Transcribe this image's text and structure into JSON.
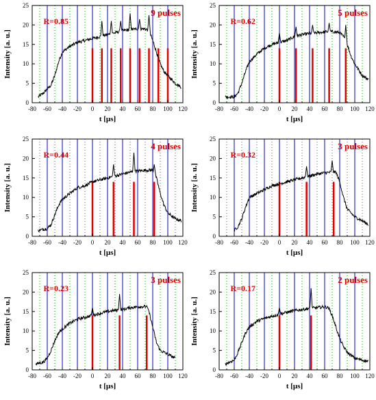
{
  "colors": {
    "trace": "#000000",
    "blue_line": "#0000c0",
    "red_pulse": "#e00000",
    "green_grid": "#00a000",
    "label": "#e00000"
  },
  "chart_data": [
    {
      "type": "line",
      "xlabel": "t [µs]",
      "ylabel": "Intensity [a. u.]",
      "xlim": [
        -80,
        120
      ],
      "ylim": [
        0,
        25
      ],
      "x_ticks": [
        "-80",
        "-60",
        "-40",
        "-20",
        "0",
        "20",
        "40",
        "60",
        "80",
        "100",
        "120"
      ],
      "y_ticks": [
        "0",
        "5",
        "10",
        "15",
        "20",
        "25"
      ],
      "r_label": "R=0.85",
      "pulse_label": "9 pulses",
      "blue_lines": [
        -60,
        -40,
        -20,
        0,
        20,
        40,
        60,
        80,
        100
      ],
      "red_pulses": [
        0,
        12.5,
        25,
        37.5,
        50,
        62.5,
        75,
        87.5,
        100
      ],
      "red_height": 14,
      "trace": [
        [
          -72,
          1.5
        ],
        [
          -65,
          2.5
        ],
        [
          -55,
          4.5
        ],
        [
          -50,
          7
        ],
        [
          -45,
          10.5
        ],
        [
          -40,
          13
        ],
        [
          -30,
          14.5
        ],
        [
          -20,
          15.5
        ],
        [
          -10,
          16
        ],
        [
          0,
          16.5
        ],
        [
          10,
          17
        ],
        [
          20,
          17.5
        ],
        [
          30,
          18
        ],
        [
          40,
          18.5
        ],
        [
          50,
          18.8
        ],
        [
          60,
          19
        ],
        [
          70,
          19
        ],
        [
          75,
          18.5
        ],
        [
          80,
          16
        ],
        [
          85,
          13
        ],
        [
          90,
          10
        ],
        [
          95,
          8
        ],
        [
          100,
          7
        ],
        [
          110,
          5
        ],
        [
          118,
          4
        ]
      ],
      "spikes": [
        [
          12.5,
          21
        ],
        [
          25,
          21
        ],
        [
          37.5,
          21
        ],
        [
          50,
          23
        ],
        [
          62.5,
          21.5
        ],
        [
          75,
          22.5
        ]
      ]
    },
    {
      "type": "line",
      "xlabel": "t [µs]",
      "ylabel": "Intensity [a. u.]",
      "xlim": [
        -80,
        120
      ],
      "ylim": [
        0,
        25
      ],
      "x_ticks": [
        "-80",
        "-60",
        "-40",
        "-20",
        "0",
        "20",
        "40",
        "60",
        "80",
        "100",
        "120"
      ],
      "y_ticks": [
        "0",
        "5",
        "10",
        "15",
        "20",
        "25"
      ],
      "r_label": "R=0.62",
      "pulse_label": "5 pulses",
      "blue_lines": [
        -60,
        -40,
        -20,
        0,
        20,
        40,
        60,
        80,
        100
      ],
      "red_pulses": [
        0,
        22,
        44,
        66,
        88
      ],
      "red_height": 14,
      "trace": [
        [
          -72,
          1.5
        ],
        [
          -60,
          1.5
        ],
        [
          -55,
          2.5
        ],
        [
          -50,
          5
        ],
        [
          -45,
          8
        ],
        [
          -40,
          10.5
        ],
        [
          -30,
          12.5
        ],
        [
          -20,
          14
        ],
        [
          -10,
          15
        ],
        [
          0,
          15.5
        ],
        [
          10,
          16
        ],
        [
          20,
          17
        ],
        [
          30,
          17.5
        ],
        [
          40,
          17.8
        ],
        [
          50,
          18
        ],
        [
          60,
          18.2
        ],
        [
          70,
          18.3
        ],
        [
          80,
          18
        ],
        [
          85,
          17
        ],
        [
          90,
          15
        ],
        [
          95,
          12
        ],
        [
          100,
          10
        ],
        [
          105,
          8.5
        ],
        [
          110,
          7
        ],
        [
          118,
          6
        ]
      ],
      "spikes": [
        [
          0,
          18
        ],
        [
          22,
          19.5
        ],
        [
          44,
          20
        ],
        [
          66,
          20.5
        ],
        [
          88,
          20
        ]
      ]
    },
    {
      "type": "line",
      "xlabel": "t [µs]",
      "ylabel": "Intensity [a. u.]",
      "xlim": [
        -80,
        120
      ],
      "ylim": [
        0,
        25
      ],
      "x_ticks": [
        "-80",
        "-60",
        "-40",
        "-20",
        "0",
        "20",
        "40",
        "60",
        "80",
        "100",
        "120"
      ],
      "y_ticks": [
        "0",
        "5",
        "10",
        "15",
        "20",
        "25"
      ],
      "r_label": "R=0.44",
      "pulse_label": "4 pulses",
      "blue_lines": [
        -60,
        -40,
        -20,
        0,
        20,
        40,
        60,
        80,
        100
      ],
      "red_pulses": [
        0,
        28,
        55,
        82
      ],
      "red_height": 14,
      "trace": [
        [
          -72,
          1.5
        ],
        [
          -60,
          2
        ],
        [
          -55,
          3
        ],
        [
          -50,
          5.5
        ],
        [
          -45,
          8
        ],
        [
          -40,
          9.5
        ],
        [
          -30,
          11
        ],
        [
          -20,
          12.5
        ],
        [
          -10,
          13
        ],
        [
          0,
          14
        ],
        [
          10,
          14.5
        ],
        [
          20,
          15
        ],
        [
          30,
          15.5
        ],
        [
          40,
          16
        ],
        [
          50,
          16.5
        ],
        [
          60,
          16.8
        ],
        [
          70,
          17
        ],
        [
          80,
          17
        ],
        [
          85,
          15
        ],
        [
          90,
          11
        ],
        [
          95,
          8
        ],
        [
          100,
          6
        ],
        [
          110,
          4.5
        ],
        [
          118,
          4
        ]
      ],
      "spikes": [
        [
          28,
          18.5
        ],
        [
          55,
          21.5
        ],
        [
          82,
          18.5
        ]
      ]
    },
    {
      "type": "line",
      "xlabel": "t [µs]",
      "ylabel": "Intensity [a. u.]",
      "xlim": [
        -80,
        120
      ],
      "ylim": [
        0,
        25
      ],
      "x_ticks": [
        "-80",
        "-60",
        "-40",
        "-20",
        "0",
        "20",
        "40",
        "60",
        "80",
        "100",
        "120"
      ],
      "y_ticks": [
        "0",
        "5",
        "10",
        "15",
        "20",
        "25"
      ],
      "r_label": "R=0.32",
      "pulse_label": "3 pulses",
      "blue_lines": [
        -60,
        -40,
        -20,
        0,
        20,
        40,
        60,
        80,
        100
      ],
      "red_pulses": [
        0,
        36,
        72
      ],
      "red_height": 14,
      "trace": [
        [
          -60,
          1.5
        ],
        [
          -55,
          2.5
        ],
        [
          -50,
          4.5
        ],
        [
          -45,
          7.5
        ],
        [
          -40,
          10
        ],
        [
          -30,
          11
        ],
        [
          -20,
          12
        ],
        [
          -10,
          13
        ],
        [
          0,
          13.5
        ],
        [
          10,
          14
        ],
        [
          20,
          14.5
        ],
        [
          30,
          15
        ],
        [
          40,
          15.5
        ],
        [
          50,
          16
        ],
        [
          60,
          16.3
        ],
        [
          70,
          16.5
        ],
        [
          75,
          16.5
        ],
        [
          80,
          14
        ],
        [
          85,
          10
        ],
        [
          90,
          7
        ],
        [
          100,
          5
        ],
        [
          110,
          4
        ],
        [
          118,
          3
        ]
      ],
      "spikes": [
        [
          36,
          18
        ],
        [
          70,
          19.5
        ]
      ]
    },
    {
      "type": "line",
      "xlabel": "t [µs]",
      "ylabel": "Intensity [a. u.]",
      "xlim": [
        -80,
        120
      ],
      "ylim": [
        0,
        25
      ],
      "x_ticks": [
        "-80",
        "-60",
        "-40",
        "-20",
        "0",
        "20",
        "40",
        "60",
        "80",
        "100",
        "120"
      ],
      "y_ticks": [
        "0",
        "5",
        "10",
        "15",
        "20",
        "25"
      ],
      "r_label": "R=0.23",
      "pulse_label": "3 pulses",
      "blue_lines": [
        -60,
        -40,
        -20,
        0,
        20,
        40,
        60,
        80,
        100
      ],
      "red_pulses": [
        0,
        36,
        72
      ],
      "red_height": 14,
      "trace": [
        [
          -75,
          1.5
        ],
        [
          -65,
          2
        ],
        [
          -60,
          3
        ],
        [
          -55,
          5
        ],
        [
          -50,
          7.5
        ],
        [
          -45,
          9.5
        ],
        [
          -40,
          10.5
        ],
        [
          -30,
          12
        ],
        [
          -20,
          13
        ],
        [
          -10,
          13.5
        ],
        [
          0,
          14
        ],
        [
          10,
          14.5
        ],
        [
          20,
          15
        ],
        [
          30,
          15.3
        ],
        [
          40,
          15.5
        ],
        [
          50,
          16
        ],
        [
          60,
          16.2
        ],
        [
          70,
          16.3
        ],
        [
          75,
          15
        ],
        [
          80,
          11
        ],
        [
          85,
          7
        ],
        [
          90,
          5
        ],
        [
          100,
          4
        ],
        [
          110,
          3
        ]
      ],
      "spikes": [
        [
          0,
          16
        ],
        [
          36,
          19.5
        ],
        [
          72,
          16.5
        ]
      ]
    },
    {
      "type": "line",
      "xlabel": "t [µs]",
      "ylabel": "Intensity [a. u.]",
      "xlim": [
        -80,
        120
      ],
      "ylim": [
        0,
        25
      ],
      "x_ticks": [
        "-80",
        "-60",
        "-40",
        "-20",
        "0",
        "20",
        "40",
        "60",
        "80",
        "100",
        "120"
      ],
      "y_ticks": [
        "0",
        "5",
        "10",
        "15",
        "20",
        "25"
      ],
      "r_label": "R=0.17",
      "pulse_label": "2 pulses",
      "blue_lines": [
        -60,
        -40,
        -20,
        0,
        20,
        40,
        60,
        80,
        100
      ],
      "red_pulses": [
        0,
        42
      ],
      "red_height": 14,
      "trace": [
        [
          -72,
          1.5
        ],
        [
          -60,
          2.5
        ],
        [
          -55,
          4.5
        ],
        [
          -50,
          7
        ],
        [
          -45,
          9.5
        ],
        [
          -40,
          11
        ],
        [
          -30,
          12.5
        ],
        [
          -20,
          13.2
        ],
        [
          -10,
          13.8
        ],
        [
          0,
          14.3
        ],
        [
          10,
          14.8
        ],
        [
          20,
          15.2
        ],
        [
          30,
          15.5
        ],
        [
          40,
          15.8
        ],
        [
          50,
          16
        ],
        [
          60,
          16.2
        ],
        [
          65,
          16
        ],
        [
          70,
          14
        ],
        [
          75,
          11
        ],
        [
          80,
          8
        ],
        [
          85,
          6
        ],
        [
          90,
          4.5
        ],
        [
          100,
          3
        ],
        [
          110,
          2.5
        ],
        [
          118,
          2.2
        ]
      ],
      "spikes": [
        [
          0,
          16
        ],
        [
          42,
          21
        ]
      ]
    }
  ]
}
